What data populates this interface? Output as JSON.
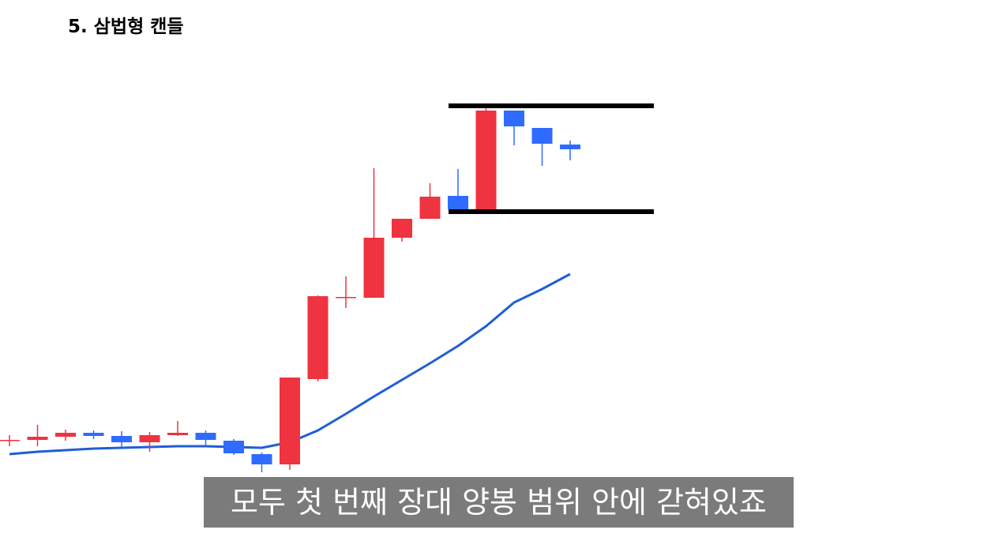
{
  "chart_data": {
    "type": "candlestick",
    "title": "5. 삼법형 캔들",
    "caption": "모두 첫 번째 장대 양봉 범위 안에 갇혀있죠",
    "categories": [
      null,
      null,
      null,
      null,
      null,
      null,
      null,
      null,
      null,
      null,
      null,
      null,
      null,
      null,
      null,
      null,
      null,
      null,
      null,
      null,
      null
    ],
    "open": [
      147,
      147,
      151,
      156,
      152,
      144,
      153,
      156,
      146,
      129,
      116,
      224,
      328,
      327,
      403,
      427,
      456,
      439,
      564,
      542,
      521
    ],
    "high": [
      153,
      166,
      160,
      159,
      158,
      157,
      171,
      159,
      148,
      131,
      226,
      330,
      354,
      491,
      427,
      472,
      490,
      568,
      564,
      542,
      526
    ],
    "low": [
      139,
      139,
      146,
      148,
      138,
      132,
      152,
      139,
      128,
      106,
      109,
      221,
      314,
      327,
      398,
      427,
      439,
      439,
      520,
      494,
      501
    ],
    "close": [
      147,
      151,
      156,
      152,
      144,
      153,
      156,
      147,
      130,
      116,
      226,
      329,
      328,
      403,
      427,
      455,
      439,
      564,
      544,
      522,
      515
    ],
    "up_color": "#ef3340",
    "down_color": "#2f6bff",
    "series": [
      {
        "color": "#1f5ed8",
        "values": [
          129,
          132,
          134,
          136,
          137,
          138,
          139,
          139,
          138,
          137,
          144,
          159,
          180,
          202,
          223,
          244,
          266,
          291,
          321,
          338,
          357
        ]
      }
    ],
    "range_lines": [
      570,
      436
    ],
    "range_line_color": "#000000",
    "ylim": [
      0,
      704
    ]
  }
}
